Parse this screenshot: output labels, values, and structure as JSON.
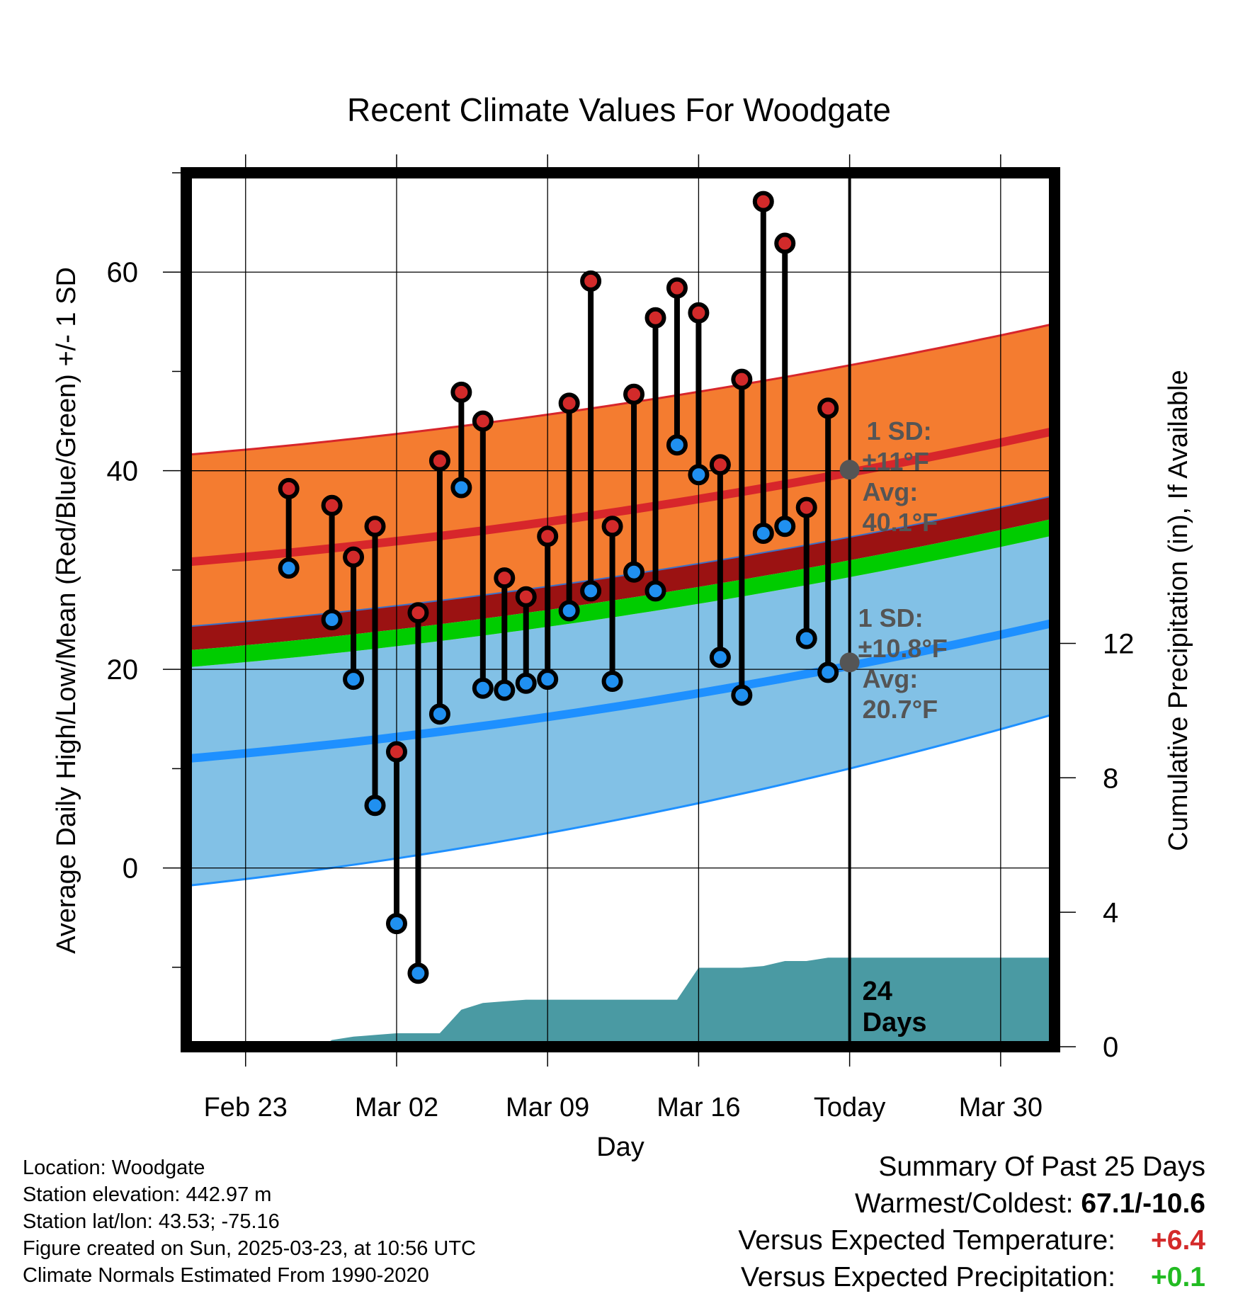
{
  "chart_data": {
    "type": "climate-range",
    "title": "Recent Climate Values For Woodgate",
    "xlabel": "Day",
    "ylabel_left": "Average Daily High/Low/Mean (Red/Blue/Green) +/- 1 SD",
    "ylabel_right": "Cumulative Precipitation (in), If Available",
    "x_ticks": [
      {
        "day": 0,
        "label": "Feb 23"
      },
      {
        "day": 7,
        "label": "Mar 02"
      },
      {
        "day": 14,
        "label": "Mar 09"
      },
      {
        "day": 21,
        "label": "Mar 16"
      },
      {
        "day": 28,
        "label": "Today"
      },
      {
        "day": 35,
        "label": "Mar 30"
      }
    ],
    "xlim": [
      -2.75,
      37.5
    ],
    "ylim_left": [
      -18,
      70
    ],
    "y_ticks_left": [
      0,
      20,
      40,
      60
    ],
    "ylim_right": [
      0,
      26
    ],
    "y_ticks_right": [
      0,
      4,
      8,
      12
    ],
    "normal_high": {
      "mean_start": 30.8,
      "mean_end": 44.0,
      "sd_upper_start": 41.6,
      "sd_upper_end": 54.8,
      "sd_lower_start": 24.3,
      "sd_lower_end": 37.5
    },
    "normal_low": {
      "mean_start": 11.0,
      "mean_end": 24.7,
      "sd_upper_start": 20.2,
      "sd_upper_end": 33.5,
      "sd_lower_start": -1.8,
      "sd_lower_end": 15.5
    },
    "normal_mean_band": {
      "lower_start": 20.2,
      "lower_end": 33.5,
      "upper_start": 21.9,
      "upper_end": 35.2
    },
    "daily_obs": [
      {
        "day": 2,
        "high": 38.2,
        "low": 30.2
      },
      {
        "day": 4,
        "high": 36.5,
        "low": 25.0
      },
      {
        "day": 5,
        "high": 31.3,
        "low": 19.0
      },
      {
        "day": 6,
        "high": 34.4,
        "low": 6.3
      },
      {
        "day": 7,
        "high": 11.7,
        "low": -5.6
      },
      {
        "day": 8,
        "high": 25.7,
        "low": -10.6
      },
      {
        "day": 9,
        "high": 41.0,
        "low": 15.5
      },
      {
        "day": 10,
        "high": 47.9,
        "low": 38.3
      },
      {
        "day": 11,
        "high": 45.0,
        "low": 18.1
      },
      {
        "day": 12,
        "high": 29.2,
        "low": 17.9
      },
      {
        "day": 13,
        "high": 27.3,
        "low": 18.6
      },
      {
        "day": 14,
        "high": 33.4,
        "low": 19.0
      },
      {
        "day": 15,
        "high": 46.8,
        "low": 25.9
      },
      {
        "day": 16,
        "high": 59.1,
        "low": 27.9
      },
      {
        "day": 17,
        "high": 34.4,
        "low": 18.8
      },
      {
        "day": 18,
        "high": 47.7,
        "low": 29.8
      },
      {
        "day": 19,
        "high": 55.4,
        "low": 27.9
      },
      {
        "day": 20,
        "high": 58.4,
        "low": 42.6
      },
      {
        "day": 21,
        "high": 55.9,
        "low": 39.6
      },
      {
        "day": 22,
        "high": 40.6,
        "low": 21.2
      },
      {
        "day": 23,
        "high": 49.2,
        "low": 17.4
      },
      {
        "day": 24,
        "high": 67.1,
        "low": 33.7
      },
      {
        "day": 25,
        "high": 62.9,
        "low": 34.4
      },
      {
        "day": 26,
        "high": 36.3,
        "low": 23.1
      },
      {
        "day": 27,
        "high": 46.3,
        "low": 19.7
      }
    ],
    "precip_cumulative": [
      {
        "day": 3.5,
        "value": 0.0
      },
      {
        "day": 4.0,
        "value": 0.2
      },
      {
        "day": 5.0,
        "value": 0.3
      },
      {
        "day": 6.0,
        "value": 0.35
      },
      {
        "day": 7.0,
        "value": 0.4
      },
      {
        "day": 9.0,
        "value": 0.4
      },
      {
        "day": 10.0,
        "value": 1.1
      },
      {
        "day": 11.0,
        "value": 1.3
      },
      {
        "day": 12.0,
        "value": 1.35
      },
      {
        "day": 13.0,
        "value": 1.4
      },
      {
        "day": 20.0,
        "value": 1.4
      },
      {
        "day": 21.0,
        "value": 2.35
      },
      {
        "day": 23.0,
        "value": 2.35
      },
      {
        "day": 24.0,
        "value": 2.4
      },
      {
        "day": 25.0,
        "value": 2.55
      },
      {
        "day": 26.0,
        "value": 2.55
      },
      {
        "day": 27.0,
        "value": 2.65
      },
      {
        "day": 37.5,
        "value": 2.65
      }
    ],
    "today_day": 28,
    "annotations": {
      "high_sd": "1 SD:",
      "high_sd_value": "±11°F",
      "high_avg": "Avg:",
      "high_avg_value": "40.1°F",
      "high_avg_num": 40.1,
      "low_sd": "1 SD:",
      "low_sd_value": "±10.8°F",
      "low_avg": "Avg:",
      "low_avg_value": "20.7°F",
      "low_avg_num": 20.7,
      "days_num": "24",
      "days_word": "Days"
    },
    "colors": {
      "high_band": "#f47c30",
      "high_mean": "#d7262b",
      "low_band": "#82c1e6",
      "low_mean": "#1e90ff",
      "overlap": "#9b1212",
      "mean_band": "#00cc00",
      "precip": "#4a9aa3",
      "annotation": "#555555",
      "high_marker": "#d22a2a",
      "low_marker": "#2090f0"
    }
  },
  "info": {
    "location": "Location: Woodgate",
    "elevation": "Station elevation: 442.97 m",
    "latlon": "Station lat/lon: 43.53; -75.16",
    "created": "Figure created on Sun, 2025-03-23, at 10:56 UTC",
    "normals": "Climate Normals Estimated From 1990-2020"
  },
  "summary": {
    "heading": "Summary Of Past 25 Days",
    "warm_cold_label": "Warmest/Coldest:",
    "warm_cold_value": "67.1/-10.6",
    "temp_label": "Versus Expected Temperature:",
    "temp_value": "+6.4",
    "temp_color": "#d42a2a",
    "precip_label": "Versus Expected Precipitation:",
    "precip_value": "+0.1",
    "precip_color": "#22bb22"
  }
}
